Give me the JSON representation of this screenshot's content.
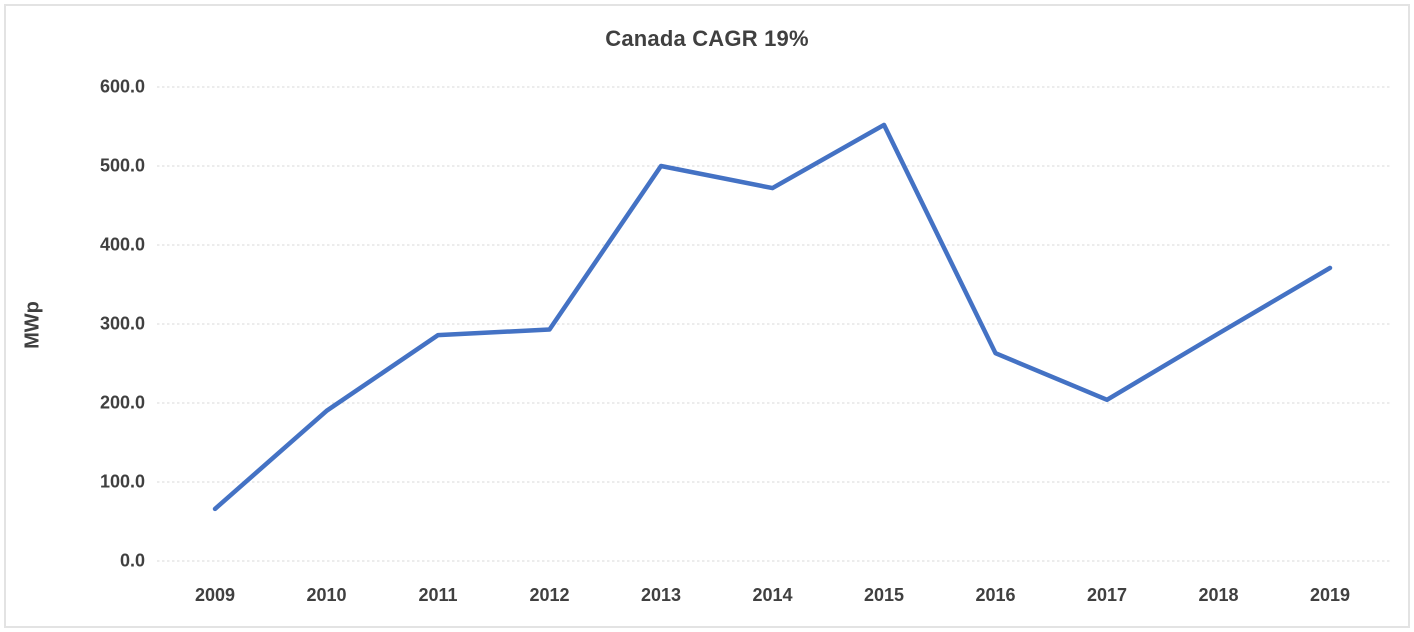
{
  "chart_data": {
    "type": "line",
    "title": "Canada CAGR 19%",
    "ylabel": "MWp",
    "xlabel": "",
    "categories": [
      "2009",
      "2010",
      "2011",
      "2012",
      "2013",
      "2014",
      "2015",
      "2016",
      "2017",
      "2018",
      "2019"
    ],
    "values": [
      66,
      190,
      286,
      293,
      500,
      472,
      552,
      263,
      204,
      288,
      371
    ],
    "ylim": [
      0,
      600
    ],
    "ytick_step": 100,
    "ytick_decimals": 1,
    "ytick_labels": [
      "0.0",
      "100.0",
      "200.0",
      "300.0",
      "400.0",
      "500.0",
      "600.0"
    ],
    "grid": "horizontal-dashed",
    "legend_position": "none",
    "colors": {
      "line": "#4472C4",
      "gridline": "#d9d9d9",
      "text": "#404040",
      "frame_border": "#e3e3e3",
      "background": "#ffffff"
    }
  }
}
